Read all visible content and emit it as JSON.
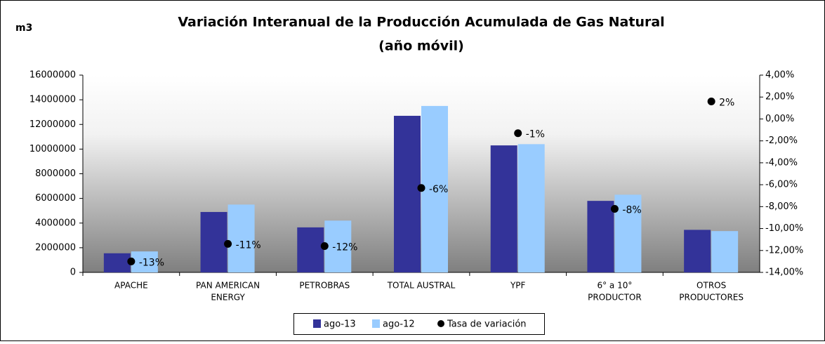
{
  "chart_data": {
    "type": "bar",
    "title": [
      "Variación Interanual de la Producción Acumulada de Gas Natural",
      "(año móvil)"
    ],
    "y_label": "m3",
    "categories": [
      [
        "APACHE"
      ],
      [
        "PAN AMERICAN",
        "ENERGY"
      ],
      [
        "PETROBRAS"
      ],
      [
        "TOTAL AUSTRAL"
      ],
      [
        "YPF"
      ],
      [
        "6° a 10°",
        "PRODUCTOR"
      ],
      [
        "OTROS",
        "PRODUCTORES"
      ]
    ],
    "series": [
      {
        "name": "ago-13",
        "color": "#333399",
        "values": [
          1550000,
          4900000,
          3650000,
          12700000,
          10300000,
          5800000,
          3450000
        ]
      },
      {
        "name": "ago-12",
        "color": "#99ccff",
        "values": [
          1700000,
          5500000,
          4200000,
          13500000,
          10400000,
          6300000,
          3350000
        ]
      },
      {
        "name": "Tasa de variación",
        "color": "#000000",
        "type": "scatter",
        "axis": "y2",
        "values": [
          -13,
          -11.4,
          -11.6,
          -6.3,
          -1.3,
          -8.2,
          1.6
        ],
        "value_labels": [
          "-13%",
          "-11%",
          "-12%",
          "-6%",
          "-1%",
          "-8%",
          "2%"
        ]
      }
    ],
    "ylim": [
      0,
      16000000
    ],
    "yticks": [
      0,
      2000000,
      4000000,
      6000000,
      8000000,
      10000000,
      12000000,
      14000000,
      16000000
    ],
    "y2lim": [
      -14,
      4
    ],
    "y2ticks": [
      {
        "value": -14,
        "label": "-14,00%"
      },
      {
        "value": -12,
        "label": "-12,00%"
      },
      {
        "value": -10,
        "label": "-10,00%"
      },
      {
        "value": -8,
        "label": "-8,00%"
      },
      {
        "value": -6,
        "label": "-6,00%"
      },
      {
        "value": -4,
        "label": "-4,00%"
      },
      {
        "value": -2,
        "label": "-2,00%"
      },
      {
        "value": 0,
        "label": "0,00%"
      },
      {
        "value": 2,
        "label": "2,00%"
      },
      {
        "value": 4,
        "label": "4,00%"
      }
    ],
    "legend": "bottom"
  }
}
